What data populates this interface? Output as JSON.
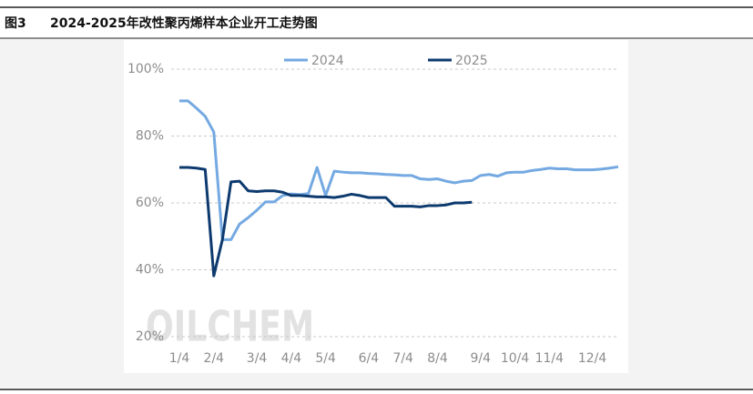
{
  "figure_label": "图3",
  "chart_data": {
    "type": "line",
    "title": "2024-2025年改性聚丙烯样本企业开工走势图",
    "watermark": "OILCHEM",
    "categories": [
      "1/4",
      null,
      null,
      null,
      "2/4",
      null,
      null,
      null,
      null,
      "3/4",
      null,
      null,
      null,
      "4/4",
      null,
      null,
      null,
      "5/4",
      null,
      null,
      null,
      null,
      "6/4",
      null,
      null,
      null,
      "7/4",
      null,
      null,
      null,
      "8/4",
      null,
      null,
      null,
      null,
      "9/4",
      null,
      null,
      null,
      "10/4",
      null,
      null,
      null,
      "11/4",
      null,
      null,
      null,
      null,
      "12/4",
      null,
      null,
      null
    ],
    "series": [
      {
        "name": "2024",
        "color": "#74a9e2",
        "values": [
          90.5,
          90.5,
          88.3,
          85.9,
          81.2,
          49,
          49,
          53.7,
          55.6,
          57.8,
          60.3,
          60.3,
          62.2,
          62.7,
          62.5,
          62.8,
          70.6,
          62.2,
          69.5,
          69.2,
          69,
          69,
          68.8,
          68.7,
          68.5,
          68.4,
          68.2,
          68.2,
          67.2,
          67,
          67.2,
          66.5,
          66,
          66.5,
          66.7,
          68.2,
          68.5,
          68,
          69,
          69.2,
          69.2,
          69.7,
          70,
          70.4,
          70.2,
          70.2,
          69.9,
          69.9,
          69.9,
          70.1,
          70.4,
          70.8
        ]
      },
      {
        "name": "2025",
        "color": "#0d3a6e",
        "values": [
          70.6,
          70.6,
          70.4,
          70,
          38.2,
          49,
          66.3,
          66.5,
          63.6,
          63.4,
          63.6,
          63.6,
          63.2,
          62.2,
          62.2,
          62,
          61.8,
          61.8,
          61.6,
          62,
          62.6,
          62.2,
          61.6,
          61.6,
          61.6,
          59,
          59,
          59,
          58.8,
          59.2,
          59.2,
          59.4,
          60,
          60,
          60.2,
          null,
          null,
          null,
          null,
          null,
          null,
          null,
          null,
          null,
          null,
          null,
          null,
          null,
          null,
          null,
          null,
          null
        ]
      }
    ],
    "ylim": [
      20,
      100
    ],
    "yticks": [
      {
        "value": 20,
        "label": "20%"
      },
      {
        "value": 40,
        "label": "40%"
      },
      {
        "value": 60,
        "label": "60%"
      },
      {
        "value": 80,
        "label": "80%"
      },
      {
        "value": 100,
        "label": "100%"
      }
    ],
    "grid": true,
    "legend": "top"
  }
}
